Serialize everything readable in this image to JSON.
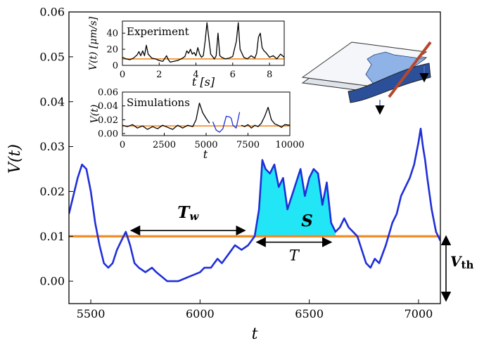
{
  "chart_data": [
    {
      "type": "line",
      "xlabel": "t",
      "ylabel": "V(t)",
      "xlim": [
        5400,
        7100
      ],
      "ylim": [
        -0.005,
        0.06
      ],
      "xticks": [
        5500,
        6000,
        6500,
        7000
      ],
      "yticks": [
        0.0,
        0.01,
        0.02,
        0.03,
        0.04,
        0.05,
        0.06
      ],
      "xtick_labels": [
        "5500",
        "6000",
        "6500",
        "7000"
      ],
      "ytick_labels": [
        "0.00",
        "0.01",
        "0.02",
        "0.03",
        "0.04",
        "0.05",
        "0.06"
      ],
      "threshold": 0.01,
      "series": [
        {
          "color": "#1f2fd8",
          "x": [
            5400,
            5420,
            5440,
            5460,
            5480,
            5500,
            5520,
            5540,
            5560,
            5580,
            5600,
            5620,
            5640,
            5660,
            5680,
            5700,
            5720,
            5750,
            5780,
            5800,
            5850,
            5900,
            5950,
            6000,
            6020,
            6050,
            6080,
            6100,
            6130,
            6160,
            6190,
            6220,
            6250,
            6270,
            6285,
            6300,
            6320,
            6340,
            6360,
            6380,
            6400,
            6420,
            6440,
            6460,
            6480,
            6500,
            6520,
            6540,
            6560,
            6580,
            6600,
            6620,
            6640,
            6660,
            6680,
            6700,
            6720,
            6740,
            6760,
            6780,
            6800,
            6820,
            6850,
            6880,
            6900,
            6920,
            6940,
            6960,
            6980,
            7000,
            7010,
            7020,
            7030,
            7040,
            7060,
            7080,
            7100
          ],
          "y": [
            0.015,
            0.019,
            0.023,
            0.026,
            0.025,
            0.02,
            0.013,
            0.008,
            0.004,
            0.003,
            0.004,
            0.007,
            0.009,
            0.011,
            0.008,
            0.004,
            0.003,
            0.002,
            0.003,
            0.002,
            0.0,
            0.0,
            0.001,
            0.002,
            0.003,
            0.003,
            0.005,
            0.004,
            0.006,
            0.008,
            0.007,
            0.008,
            0.01,
            0.016,
            0.027,
            0.025,
            0.024,
            0.026,
            0.021,
            0.023,
            0.016,
            0.019,
            0.022,
            0.025,
            0.019,
            0.023,
            0.025,
            0.024,
            0.017,
            0.022,
            0.013,
            0.011,
            0.012,
            0.014,
            0.012,
            0.011,
            0.01,
            0.007,
            0.004,
            0.003,
            0.005,
            0.004,
            0.008,
            0.013,
            0.015,
            0.019,
            0.021,
            0.023,
            0.026,
            0.031,
            0.034,
            0.03,
            0.027,
            0.023,
            0.016,
            0.011,
            0.009
          ]
        }
      ],
      "annotations": {
        "Tw_label": "T",
        "Tw_sub": "w",
        "S_label": "S",
        "T_label": "T",
        "Vth_label": "V",
        "Vth_sub": "th",
        "Tw_range": [
          5665,
          6225
        ],
        "T_range": [
          6240,
          6620
        ],
        "S_range": [
          6250,
          6620
        ]
      }
    },
    {
      "type": "line",
      "title": "Experiment",
      "xlabel": "t [s]",
      "ylabel": "V(t) [μm/s]",
      "xlim": [
        0,
        8.8
      ],
      "ylim": [
        0,
        55
      ],
      "xticks": [
        0,
        2,
        4,
        6,
        8
      ],
      "yticks": [
        0,
        20,
        40
      ],
      "xtick_labels": [
        "0",
        "2",
        "4",
        "6",
        "8"
      ],
      "ytick_labels": [
        "0",
        "20",
        "40"
      ],
      "threshold": 8,
      "series": [
        {
          "color": "#000000",
          "x": [
            0,
            0.2,
            0.4,
            0.6,
            0.8,
            0.9,
            1.0,
            1.1,
            1.2,
            1.3,
            1.4,
            1.6,
            1.8,
            2.0,
            2.2,
            2.4,
            2.5,
            2.6,
            2.8,
            3.0,
            3.2,
            3.4,
            3.5,
            3.6,
            3.7,
            3.8,
            3.9,
            4.0,
            4.1,
            4.2,
            4.3,
            4.4,
            4.5,
            4.6,
            4.8,
            5.0,
            5.1,
            5.2,
            5.3,
            5.4,
            5.6,
            5.8,
            6.0,
            6.2,
            6.3,
            6.4,
            6.5,
            6.6,
            6.8,
            7.0,
            7.2,
            7.3,
            7.4,
            7.5,
            7.6,
            7.7,
            7.8,
            8.0,
            8.2,
            8.4,
            8.6,
            8.8
          ],
          "y": [
            10,
            8,
            7,
            9,
            13,
            17,
            12,
            18,
            12,
            25,
            14,
            9,
            8,
            6,
            5,
            12,
            7,
            4,
            5,
            6,
            8,
            11,
            18,
            15,
            20,
            14,
            16,
            12,
            22,
            14,
            10,
            12,
            30,
            53,
            14,
            8,
            12,
            40,
            12,
            10,
            8,
            9,
            11,
            30,
            53,
            20,
            15,
            10,
            8,
            12,
            9,
            15,
            35,
            40,
            22,
            18,
            16,
            10,
            12,
            8,
            14,
            10
          ]
        }
      ]
    },
    {
      "type": "line",
      "title": "Simulations",
      "xlabel": "t",
      "ylabel": "V(t)",
      "xlim": [
        0,
        10000
      ],
      "ylim": [
        -0.003,
        0.06
      ],
      "xticks": [
        0,
        2500,
        5000,
        7500,
        10000
      ],
      "yticks": [
        0.0,
        0.02,
        0.04,
        0.06
      ],
      "xtick_labels": [
        "0",
        "2500",
        "5000",
        "7500",
        "10000"
      ],
      "ytick_labels": [
        "0.00",
        "0.02",
        "0.04",
        "0.06"
      ],
      "threshold": 0.011,
      "series": [
        {
          "color": "#000000",
          "x": [
            0,
            300,
            600,
            900,
            1200,
            1500,
            1800,
            2100,
            2400,
            2700,
            3000,
            3300,
            3600,
            3900,
            4200,
            4400,
            4600,
            4800,
            5000,
            5200
          ],
          "y": [
            0.012,
            0.01,
            0.013,
            0.008,
            0.011,
            0.006,
            0.01,
            0.007,
            0.012,
            0.009,
            0.006,
            0.012,
            0.008,
            0.012,
            0.01,
            0.02,
            0.044,
            0.03,
            0.022,
            0.015
          ]
        },
        {
          "color": "#1f2fd8",
          "x": [
            5400,
            5600,
            5800,
            6000,
            6200,
            6400,
            6500,
            6600,
            6800,
            7000
          ],
          "y": [
            0.017,
            0.005,
            0.002,
            0.007,
            0.025,
            0.024,
            0.022,
            0.012,
            0.008,
            0.031
          ]
        },
        {
          "color": "#000000",
          "x": [
            7100,
            7300,
            7500,
            7700,
            7900,
            8100,
            8300,
            8500,
            8700,
            8900,
            9100,
            9300,
            9500,
            9700,
            10000
          ],
          "y": [
            0.012,
            0.01,
            0.013,
            0.008,
            0.012,
            0.01,
            0.015,
            0.025,
            0.038,
            0.02,
            0.014,
            0.012,
            0.009,
            0.013,
            0.012
          ]
        }
      ]
    }
  ]
}
